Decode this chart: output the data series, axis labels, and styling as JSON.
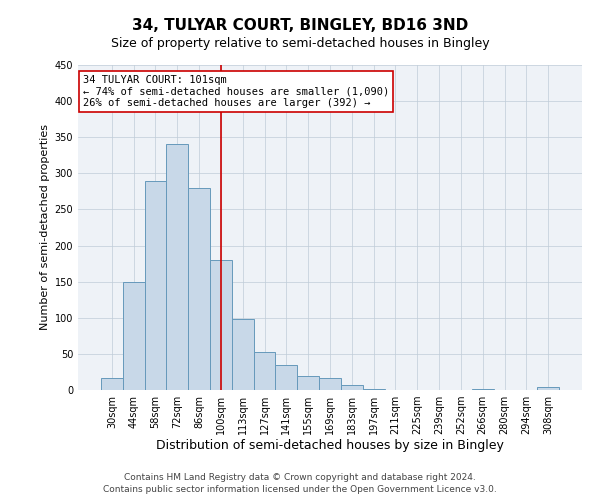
{
  "title": "34, TULYAR COURT, BINGLEY, BD16 3ND",
  "subtitle": "Size of property relative to semi-detached houses in Bingley",
  "xlabel": "Distribution of semi-detached houses by size in Bingley",
  "ylabel": "Number of semi-detached properties",
  "categories": [
    "30sqm",
    "44sqm",
    "58sqm",
    "72sqm",
    "86sqm",
    "100sqm",
    "113sqm",
    "127sqm",
    "141sqm",
    "155sqm",
    "169sqm",
    "183sqm",
    "197sqm",
    "211sqm",
    "225sqm",
    "239sqm",
    "252sqm",
    "266sqm",
    "280sqm",
    "294sqm",
    "308sqm"
  ],
  "values": [
    17,
    150,
    290,
    340,
    280,
    180,
    98,
    53,
    35,
    20,
    16,
    7,
    2,
    0,
    0,
    0,
    0,
    2,
    0,
    0,
    4
  ],
  "bar_color": "#c8d8e8",
  "bar_edge_color": "#6699bb",
  "vline_x_index": 5,
  "vline_color": "#cc0000",
  "ylim": [
    0,
    450
  ],
  "yticks": [
    0,
    50,
    100,
    150,
    200,
    250,
    300,
    350,
    400,
    450
  ],
  "annotation_title": "34 TULYAR COURT: 101sqm",
  "annotation_line1": "← 74% of semi-detached houses are smaller (1,090)",
  "annotation_line2": "26% of semi-detached houses are larger (392) →",
  "annotation_box_color": "#ffffff",
  "annotation_box_edge_color": "#cc0000",
  "footer1": "Contains HM Land Registry data © Crown copyright and database right 2024.",
  "footer2": "Contains public sector information licensed under the Open Government Licence v3.0.",
  "title_fontsize": 11,
  "subtitle_fontsize": 9,
  "xlabel_fontsize": 9,
  "ylabel_fontsize": 8,
  "tick_fontsize": 7,
  "annotation_fontsize": 7.5,
  "footer_fontsize": 6.5
}
